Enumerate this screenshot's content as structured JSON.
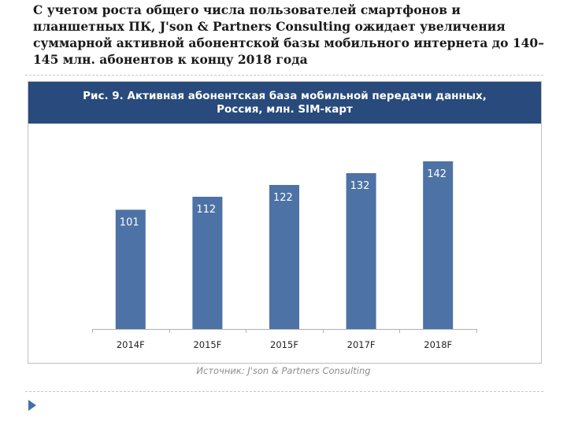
{
  "heading": "С учетом роста общего числа пользователей смартфонов и планшетных ПК, J'son & Partners Consulting ожидает увеличения суммарной активной абонентской базы мобильного интернета до 140–145 млн. абонентов к концу 2018 года",
  "source": "Источник: J'son & Partners Consulting",
  "colors": {
    "banner": "#284a7c",
    "bar": "#4d72a5",
    "arrow": "#4472a8"
  },
  "chart_data": {
    "type": "bar",
    "title_line1": "Рис. 9. Активная абонентская база мобильной передачи данных,",
    "title_line2": "Россия, млн. SIM-карт",
    "categories": [
      "2014F",
      "2015F",
      "2015F",
      "2017F",
      "2018F"
    ],
    "values": [
      101,
      112,
      122,
      132,
      142
    ],
    "value_labels": [
      "101",
      "112",
      "122",
      "132",
      "142"
    ],
    "xlabel": "",
    "ylabel": "",
    "ylim": [
      0,
      142
    ],
    "grid": false,
    "legend": "none"
  }
}
